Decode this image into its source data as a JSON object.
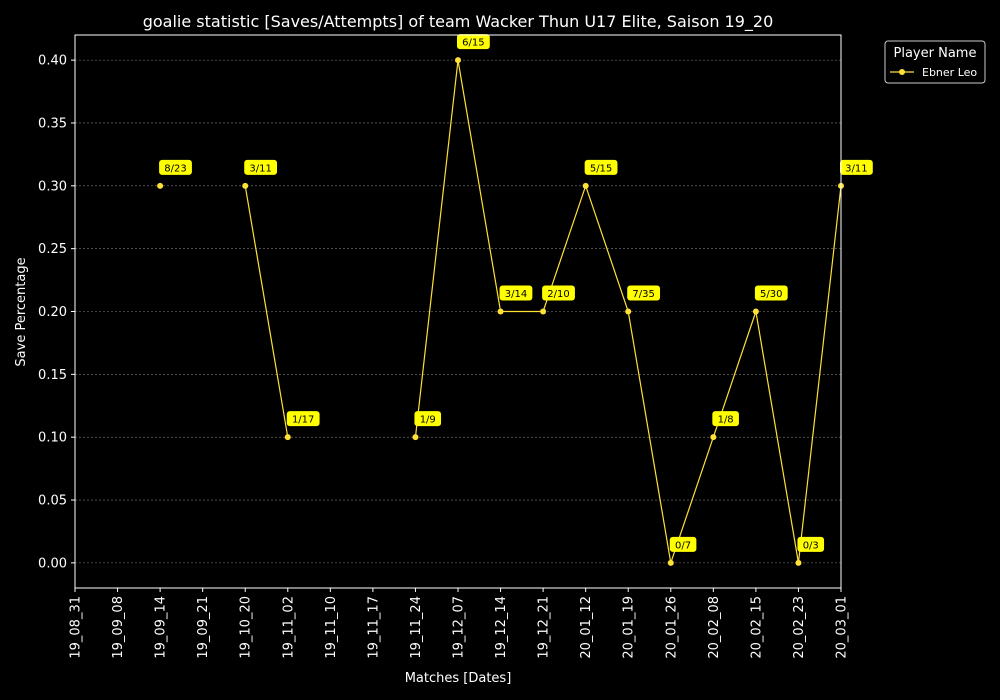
{
  "chart_data": {
    "type": "line",
    "title": "goalie statistic [Saves/Attempts] of team Wacker Thun U17 Elite, Saison 19_20",
    "xlabel": "Matches [Dates]",
    "ylabel": "Save Percentage",
    "categories": [
      "19_08_31",
      "19_09_08",
      "19_09_14",
      "19_09_21",
      "19_10_20",
      "19_11_02",
      "19_11_10",
      "19_11_17",
      "19_11_24",
      "19_12_07",
      "19_12_14",
      "19_12_21",
      "20_01_12",
      "20_01_19",
      "20_01_26",
      "20_02_08",
      "20_02_15",
      "20_02_23",
      "20_03_01"
    ],
    "ylim": [
      -0.02,
      0.42
    ],
    "yticks": [
      "0.00",
      "0.05",
      "0.10",
      "0.15",
      "0.20",
      "0.25",
      "0.30",
      "0.35",
      "0.40"
    ],
    "grid": true,
    "legend": {
      "title": "Player Name",
      "placement": "top-right, outside plot"
    },
    "series": [
      {
        "name": "Ebner Leo",
        "color": "#FFE135",
        "values": [
          null,
          null,
          0.3,
          null,
          0.3,
          0.1,
          null,
          null,
          0.1,
          0.4,
          0.2,
          0.2,
          0.3,
          0.2,
          0.0,
          0.1,
          0.2,
          0.0,
          0.3
        ],
        "labels": [
          null,
          null,
          "8/23",
          null,
          "3/11",
          "1/17",
          null,
          null,
          "1/9",
          "6/15",
          "3/14",
          "2/10",
          "5/15",
          "7/35",
          "0/7",
          "1/8",
          "5/30",
          "0/3",
          "3/11"
        ]
      }
    ]
  },
  "colors": {
    "background": "#000000",
    "axes": "#ffffff",
    "grid": "#808080",
    "label_bg": "#ffff00"
  }
}
